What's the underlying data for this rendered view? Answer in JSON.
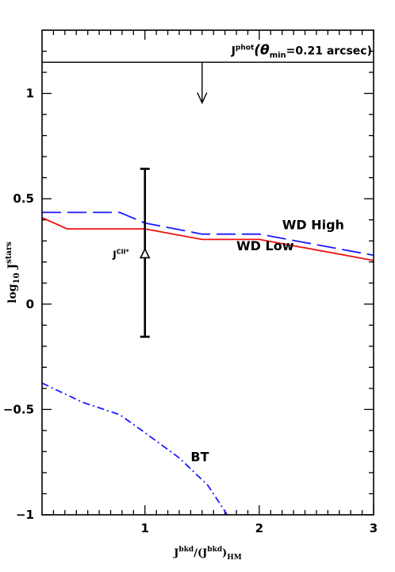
{
  "chart_data": {
    "type": "line",
    "xlim": [
      0.1,
      3.0
    ],
    "ylim": [
      -1.0,
      1.3
    ],
    "x_ticks": [
      {
        "v": 1,
        "label": "1"
      },
      {
        "v": 2,
        "label": "2"
      },
      {
        "v": 3,
        "label": "3"
      }
    ],
    "y_ticks": [
      {
        "v": -1,
        "label": "−1"
      },
      {
        "v": -0.5,
        "label": "−0.5"
      },
      {
        "v": 0,
        "label": "0"
      },
      {
        "v": 0.5,
        "label": "0.5"
      },
      {
        "v": 1,
        "label": "1"
      }
    ],
    "xlabel": {
      "base": "J",
      "sup1": "bkd",
      "mid": "/(J",
      "sup2": "bkd",
      "close": ")",
      "sub": "HM"
    },
    "ylabel": {
      "pre": "log",
      "sub": "10",
      "base": " J",
      "sup": "stars"
    },
    "series": [
      {
        "name": "WD High",
        "color": "#1a1aff",
        "dash": "dashed",
        "label_at": [
          2.2,
          0.355
        ],
        "x": [
          0.1,
          0.78,
          1.0,
          1.5,
          2.0,
          3.0
        ],
        "y": [
          0.435,
          0.435,
          0.385,
          0.332,
          0.332,
          0.232
        ]
      },
      {
        "name": "WD Low",
        "color": "#ee1111",
        "dash": "solid",
        "label_at": [
          1.8,
          0.255
        ],
        "x": [
          0.1,
          0.32,
          1.0,
          1.5,
          2.0,
          3.0
        ],
        "y": [
          0.41,
          0.357,
          0.357,
          0.307,
          0.307,
          0.207
        ]
      },
      {
        "name": "BT",
        "color": "#1a1aff",
        "dash": "dashdot",
        "label_at": [
          1.4,
          -0.745
        ],
        "x": [
          0.1,
          0.45,
          0.78,
          1.0,
          1.3,
          1.55,
          1.72
        ],
        "y": [
          -0.375,
          -0.465,
          -0.525,
          -0.61,
          -0.73,
          -0.86,
          -1.0
        ]
      }
    ],
    "errorbar": {
      "label_base": "J",
      "label_sup": "CII*",
      "x": 1.0,
      "y": 0.235,
      "ylow": -0.155,
      "yhigh": 0.642
    },
    "upper_limit": {
      "label_base": "J",
      "label_sup": "phot",
      "label_rest": "(θ",
      "label_sub": "min",
      "label_tail": "=0.21 arcsec)",
      "y": 1.148,
      "arrow_x": 1.5,
      "arrow_to": 0.955
    }
  }
}
